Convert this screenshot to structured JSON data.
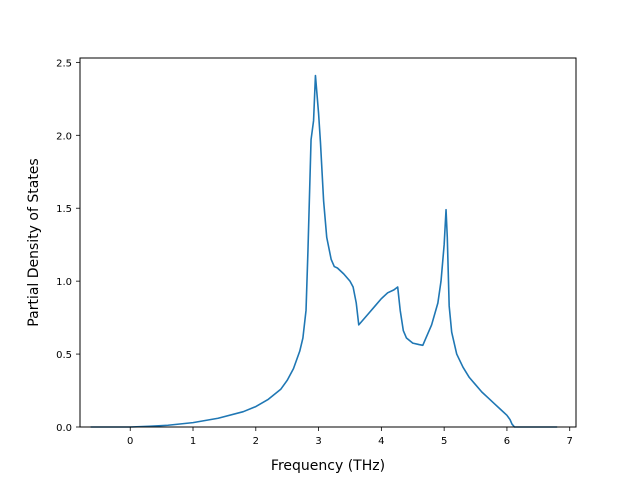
{
  "chart_data": {
    "type": "line",
    "xlabel": "Frequency (THz)",
    "ylabel": "Partial Density of States",
    "xlim": [
      -0.8,
      7.1
    ],
    "ylim": [
      0.0,
      2.53
    ],
    "xticks": [
      0,
      1,
      2,
      3,
      4,
      5,
      6,
      7
    ],
    "yticks": [
      0.0,
      0.5,
      1.0,
      1.5,
      2.0,
      2.5
    ],
    "xtick_labels": [
      "0",
      "1",
      "2",
      "3",
      "4",
      "5",
      "6",
      "7"
    ],
    "ytick_labels": [
      "0.0",
      "0.5",
      "1.0",
      "1.5",
      "2.0",
      "2.5"
    ],
    "grid": false,
    "line_color": "#1f77b4",
    "series": [
      {
        "x": [
          -0.63,
          -0.2,
          0.0,
          0.3,
          0.6,
          1.0,
          1.4,
          1.8,
          2.0,
          2.2,
          2.4,
          2.5,
          2.6,
          2.7,
          2.75,
          2.8,
          2.83,
          2.88,
          2.92,
          2.95,
          3.0,
          3.03,
          3.08,
          3.13,
          3.2,
          3.25,
          3.3,
          3.4,
          3.5,
          3.55,
          3.6,
          3.64,
          3.7,
          3.8,
          3.9,
          4.0,
          4.1,
          4.2,
          4.26,
          4.3,
          4.35,
          4.4,
          4.5,
          4.6,
          4.66,
          4.7,
          4.8,
          4.9,
          4.95,
          5.0,
          5.03,
          5.05,
          5.08,
          5.12,
          5.2,
          5.3,
          5.4,
          5.5,
          5.6,
          5.7,
          5.8,
          5.9,
          6.0,
          6.05,
          6.08,
          6.12,
          6.15,
          6.2,
          6.5,
          6.8
        ],
        "y": [
          0.0,
          0.0,
          0.0,
          0.005,
          0.012,
          0.03,
          0.06,
          0.105,
          0.14,
          0.19,
          0.26,
          0.32,
          0.4,
          0.52,
          0.61,
          0.8,
          1.2,
          1.97,
          2.1,
          2.41,
          2.15,
          1.95,
          1.55,
          1.3,
          1.15,
          1.1,
          1.09,
          1.05,
          1.0,
          0.96,
          0.85,
          0.7,
          0.73,
          0.78,
          0.83,
          0.88,
          0.92,
          0.94,
          0.96,
          0.8,
          0.66,
          0.61,
          0.575,
          0.565,
          0.56,
          0.6,
          0.7,
          0.85,
          1.0,
          1.25,
          1.49,
          1.3,
          0.83,
          0.65,
          0.5,
          0.41,
          0.34,
          0.29,
          0.24,
          0.2,
          0.16,
          0.12,
          0.08,
          0.05,
          0.02,
          0.0,
          0.0,
          0.0,
          0.0,
          0.0
        ]
      }
    ]
  }
}
